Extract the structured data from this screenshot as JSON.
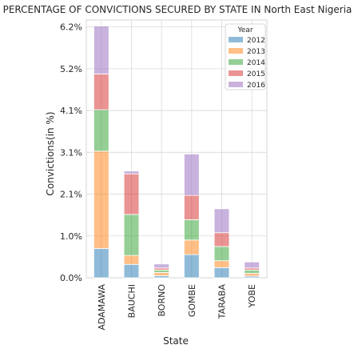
{
  "chart_data": {
    "type": "bar",
    "stacked": true,
    "title": "PERCENTAGE OF CONVICTIONS SECURED BY STATE IN North East Nigeria",
    "xlabel": "State",
    "ylabel": "Convictions(in %)",
    "categories": [
      "ADAMAWA",
      "BAUCHI",
      "BORNO",
      "GOMBE",
      "TARABA",
      "YOBE"
    ],
    "ylim": [
      0,
      6.35
    ],
    "ytick_values": [
      0,
      1.03,
      2.06,
      3.09,
      4.12,
      5.15,
      6.18
    ],
    "ytick_labels": [
      "0.0%",
      "1.0%",
      "2.1%",
      "3.1%",
      "4.1%",
      "5.2%",
      "6.2%"
    ],
    "grid": true,
    "legend": {
      "title": "Year",
      "position": "top-right"
    },
    "series": [
      {
        "name": "2012",
        "color": "#1f77b4",
        "values": [
          0.72,
          0.33,
          0.05,
          0.57,
          0.25,
          0.04
        ]
      },
      {
        "name": "2013",
        "color": "#ff7f0e",
        "values": [
          2.4,
          0.22,
          0.08,
          0.36,
          0.17,
          0.07
        ]
      },
      {
        "name": "2014",
        "color": "#2ca02c",
        "values": [
          1.02,
          1.01,
          0.06,
          0.5,
          0.35,
          0.08
        ]
      },
      {
        "name": "2015",
        "color": "#d62728",
        "values": [
          0.88,
          1.0,
          0.05,
          0.6,
          0.34,
          0.05
        ]
      },
      {
        "name": "2016",
        "color": "#9467bd",
        "values": [
          1.18,
          0.07,
          0.1,
          1.02,
          0.59,
          0.15
        ]
      }
    ]
  }
}
